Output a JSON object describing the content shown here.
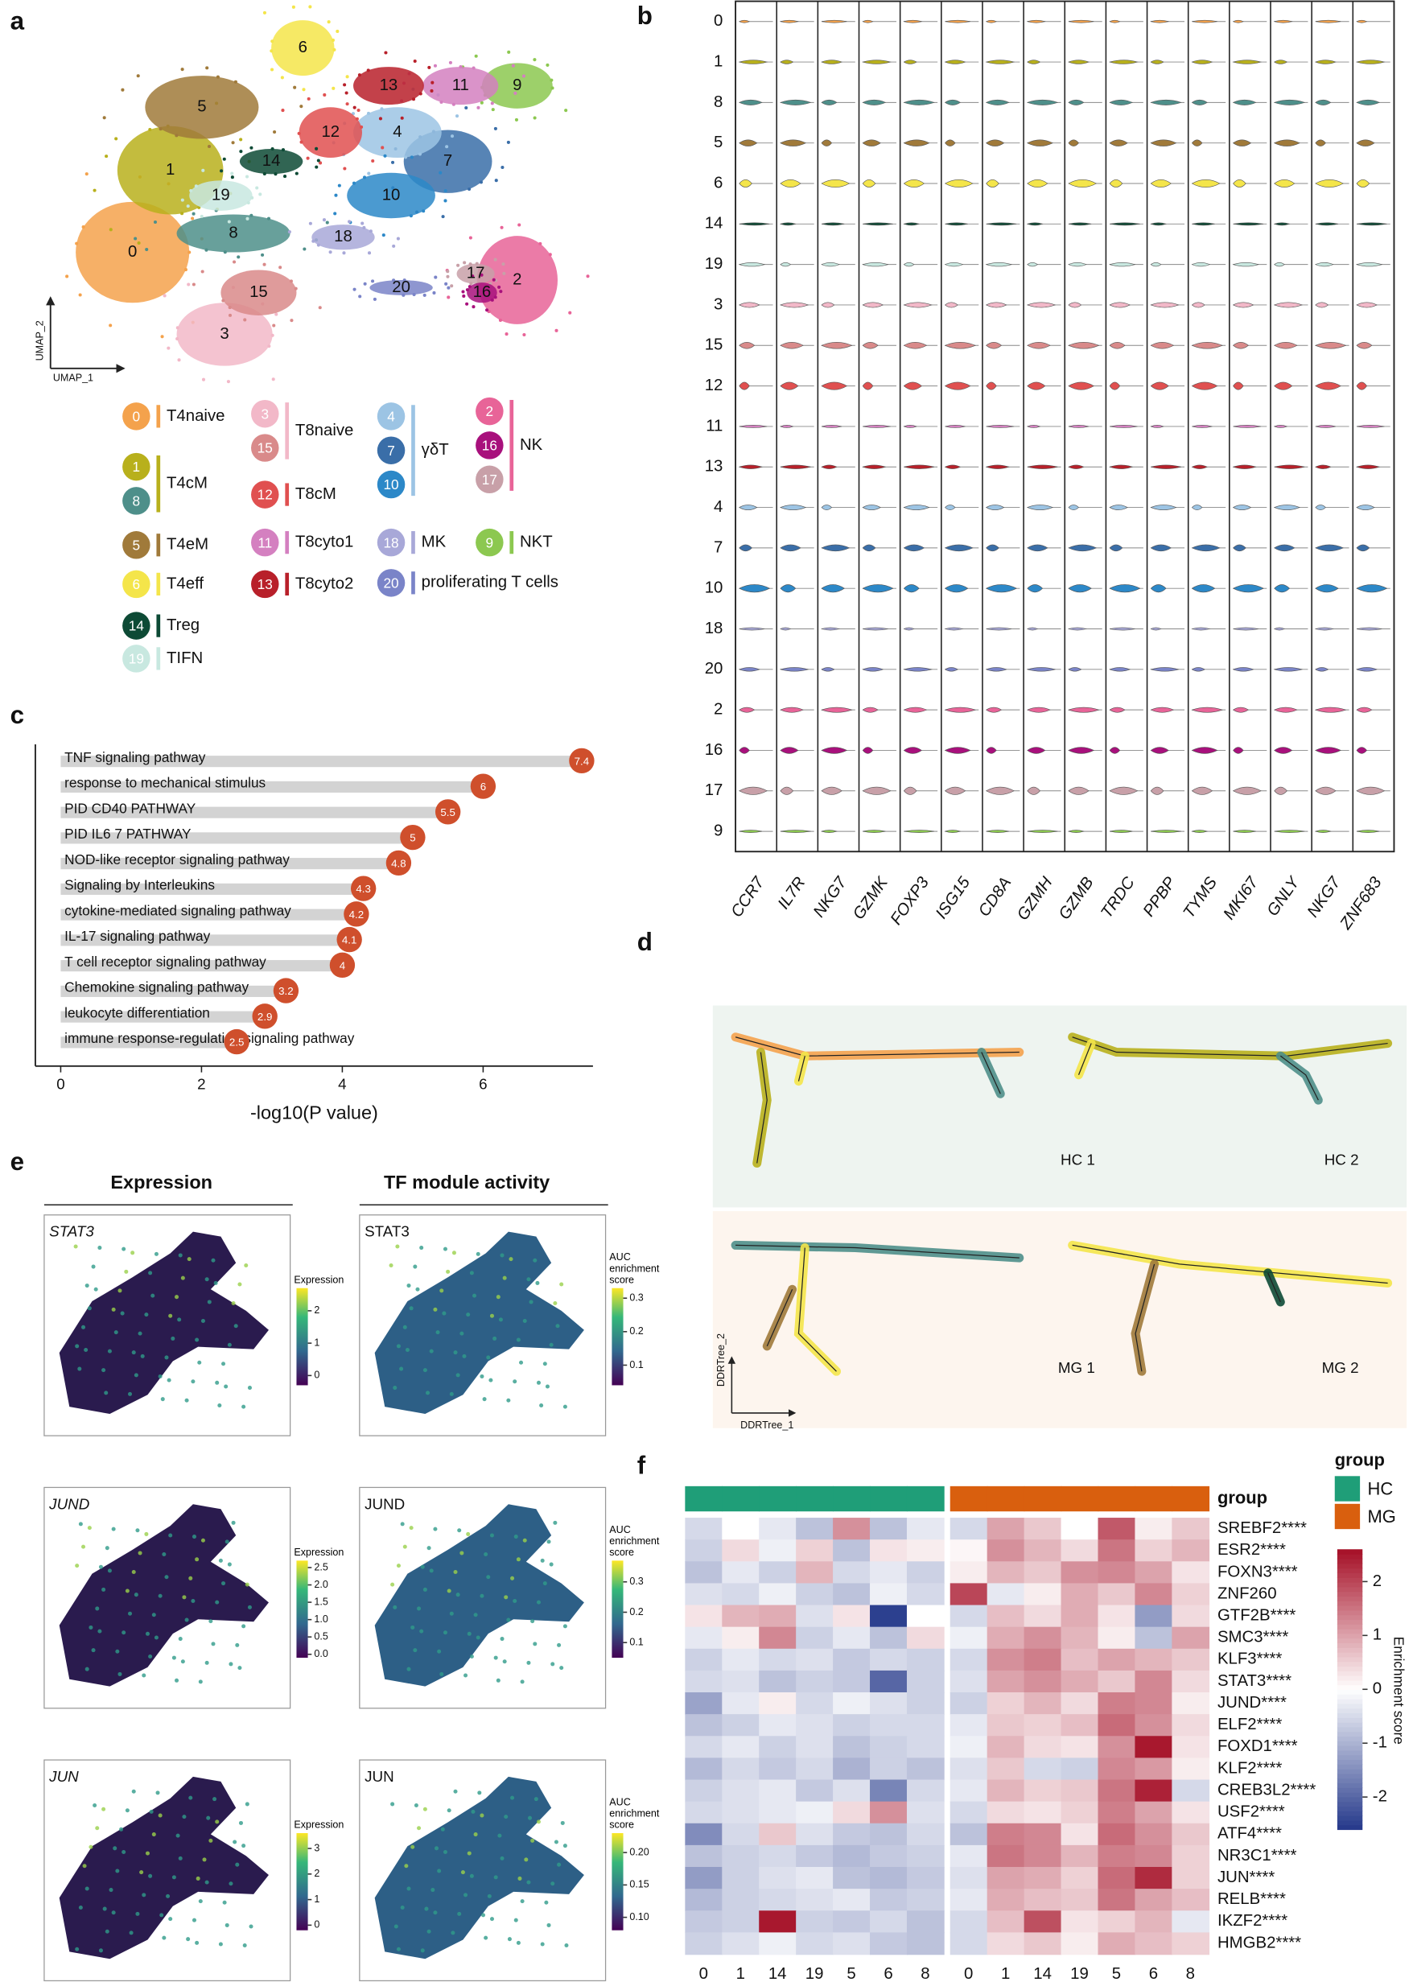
{
  "panel_letters": [
    "a",
    "b",
    "c",
    "d",
    "e",
    "f"
  ],
  "umap": {
    "x_label": "UMAP_1",
    "y_label": "UMAP_2"
  },
  "clusters": [
    {
      "id": "0",
      "color": "#f4a24c"
    },
    {
      "id": "1",
      "color": "#b8b01c"
    },
    {
      "id": "2",
      "color": "#e86498"
    },
    {
      "id": "3",
      "color": "#f2b8c8"
    },
    {
      "id": "4",
      "color": "#9cc4e4"
    },
    {
      "id": "5",
      "color": "#a07a3a"
    },
    {
      "id": "6",
      "color": "#f4e54a"
    },
    {
      "id": "7",
      "color": "#3a6ea8"
    },
    {
      "id": "8",
      "color": "#4e8f8a"
    },
    {
      "id": "9",
      "color": "#8cc850"
    },
    {
      "id": "10",
      "color": "#2c88c8"
    },
    {
      "id": "11",
      "color": "#d480c0"
    },
    {
      "id": "12",
      "color": "#e05050"
    },
    {
      "id": "13",
      "color": "#b8202a"
    },
    {
      "id": "14",
      "color": "#0d4a35"
    },
    {
      "id": "15",
      "color": "#d98a8a"
    },
    {
      "id": "16",
      "color": "#a8107c"
    },
    {
      "id": "17",
      "color": "#c8a0a8"
    },
    {
      "id": "18",
      "color": "#a8a8d8"
    },
    {
      "id": "19",
      "color": "#c8e8e0"
    },
    {
      "id": "20",
      "color": "#7a84c8"
    }
  ],
  "cell_types": [
    {
      "name": "T4naive",
      "clusters": [
        "0"
      ]
    },
    {
      "name": "T4cM",
      "clusters": [
        "1",
        "8"
      ]
    },
    {
      "name": "T4eM",
      "clusters": [
        "5"
      ]
    },
    {
      "name": "T4eff",
      "clusters": [
        "6"
      ]
    },
    {
      "name": "Treg",
      "clusters": [
        "14"
      ]
    },
    {
      "name": "TIFN",
      "clusters": [
        "19"
      ]
    },
    {
      "name": "T8naive",
      "clusters": [
        "3",
        "15"
      ]
    },
    {
      "name": "T8cM",
      "clusters": [
        "12"
      ]
    },
    {
      "name": "T8cyto1",
      "clusters": [
        "11"
      ]
    },
    {
      "name": "T8cyto2",
      "clusters": [
        "13"
      ]
    },
    {
      "name": "γδT",
      "clusters": [
        "4",
        "7",
        "10"
      ]
    },
    {
      "name": "MK",
      "clusters": [
        "18"
      ]
    },
    {
      "name": "proliferating T cells",
      "clusters": [
        "20"
      ]
    },
    {
      "name": "NK",
      "clusters": [
        "2",
        "16",
        "17"
      ]
    },
    {
      "name": "NKT",
      "clusters": [
        "9"
      ]
    }
  ],
  "violin": {
    "rows": [
      "0",
      "1",
      "8",
      "5",
      "6",
      "14",
      "19",
      "3",
      "15",
      "12",
      "11",
      "13",
      "4",
      "7",
      "10",
      "18",
      "20",
      "2",
      "16",
      "17",
      "9"
    ],
    "genes": [
      "CCR7",
      "IL7R",
      "NKG7",
      "GZMK",
      "FOXP3",
      "ISG15",
      "CD8A",
      "GZMH",
      "GZMB",
      "TRDC",
      "PPBP",
      "TYMS",
      "MKI67",
      "GNLY",
      "NKG7",
      "ZNF683"
    ]
  },
  "trajectory": {
    "panels": [
      "HC  1",
      "HC  2",
      "MG 1",
      "MG 2"
    ],
    "x_label": "DDRTree_1",
    "y_label": "DDRTree_2"
  },
  "regulons": {
    "headers": [
      "Expression",
      "TF module activity"
    ],
    "rows": [
      {
        "gene": "STAT3",
        "expression": {
          "title": "Expression",
          "lim": [
            -0.3,
            2.7
          ],
          "ticks": [
            0,
            1,
            2
          ]
        },
        "activity": {
          "title": "AUC enrichment score",
          "lim": [
            0.04,
            0.33
          ],
          "ticks": [
            0.1,
            0.2,
            0.3
          ]
        }
      },
      {
        "gene": "JUND",
        "expression": {
          "title": "Expression",
          "lim": [
            -0.1,
            2.7
          ],
          "ticks": [
            {
              "value": 0,
              "label": "0.0"
            },
            0.5,
            {
              "value": 1,
              "label": "1.0"
            },
            1.5,
            {
              "value": 2,
              "label": "2.0"
            },
            2.5
          ]
        },
        "activity": {
          "title": "AUC enrichment score",
          "lim": [
            0.05,
            0.37
          ],
          "ticks": [
            0.1,
            0.2,
            0.3
          ]
        }
      },
      {
        "gene": "JUN",
        "expression": {
          "title": "Expression",
          "lim": [
            -0.2,
            3.6
          ],
          "ticks": [
            0,
            1,
            2,
            3
          ]
        },
        "activity": {
          "title": "AUC enrichment score",
          "lim": [
            0.08,
            0.23
          ],
          "ticks": [
            {
              "value": 0.1,
              "label": "0.10"
            },
            0.15,
            {
              "value": 0.2,
              "label": "0.20"
            }
          ]
        }
      }
    ]
  },
  "chart_data": [
    {
      "type": "bar",
      "orientation": "horizontal",
      "categories": [
        "TNF signaling pathway",
        "response to mechanical stimulus",
        "PID CD40 PATHWAY",
        "PID IL6 7 PATHWAY",
        "NOD-like receptor signaling pathway",
        "Signaling by Interleukins",
        "cytokine-mediated signaling pathway",
        "IL-17 signaling pathway",
        "T cell receptor signaling pathway",
        "Chemokine signaling pathway",
        "leukocyte differentiation",
        "immune response-regulating signaling pathway"
      ],
      "values": [
        7.4,
        6,
        5.5,
        5,
        4.8,
        4.3,
        4.2,
        4.1,
        4,
        3.2,
        2.9,
        2.5
      ],
      "color": "#d3d3d3",
      "marker_color": "#cf4f2c",
      "x_label": "-log10(P value)",
      "xlim": [
        -0.36,
        7.56
      ],
      "xticks": [
        0,
        2,
        4,
        6
      ]
    },
    {
      "type": "heatmap",
      "x": [
        "0",
        "1",
        "14",
        "19",
        "5",
        "6",
        "8",
        "0",
        "1",
        "14",
        "19",
        "5",
        "6",
        "8"
      ],
      "column_groups": [
        "HC",
        "HC",
        "HC",
        "HC",
        "HC",
        "HC",
        "HC",
        "MG",
        "MG",
        "MG",
        "MG",
        "MG",
        "MG",
        "MG"
      ],
      "annotation_label": "group",
      "group_legend": {
        "title": "group",
        "names": [
          "HC",
          "MG"
        ],
        "colors": [
          "#1f9e78",
          "#d95f0e"
        ]
      },
      "y": [
        "SREBF2****",
        "ESR2****",
        "FOXN3****",
        "ZNF260",
        "GTF2B****",
        "SMC3****",
        "KLF3****",
        "STAT3****",
        "JUND****",
        "ELF2****",
        "FOXD1****",
        "KLF2****",
        "CREB3L2****",
        "USF2****",
        "ATF4****",
        "NR3C1****",
        "JUN****",
        "RELB****",
        "IKZF2****",
        "HMGB2****"
      ],
      "values": [
        [
          -0.5,
          0,
          -0.3,
          -0.8,
          1.2,
          -0.8,
          -0.3,
          -0.5,
          1,
          0.6,
          0,
          1.8,
          0.2,
          0.6
        ],
        [
          -0.6,
          0.4,
          -0.2,
          0.5,
          -0.8,
          0.3,
          0.2,
          0.1,
          1.2,
          0.8,
          0.4,
          1.5,
          0.5,
          0.8
        ],
        [
          -0.8,
          -0.3,
          -0.6,
          0.8,
          -0.5,
          -0.3,
          -0.6,
          0.2,
          0.8,
          0.6,
          1.2,
          1.3,
          1,
          0.3
        ],
        [
          -0.4,
          -0.5,
          -0.2,
          -0.6,
          -0.8,
          -0.2,
          -0.5,
          2,
          -0.3,
          0.2,
          0.9,
          0.6,
          1.3,
          0.5
        ],
        [
          0.3,
          0.8,
          0.9,
          -0.4,
          0.3,
          -2.5,
          0,
          -0.5,
          0.7,
          0.4,
          0.9,
          0.3,
          -1.3,
          0.4
        ],
        [
          -0.3,
          0.2,
          1.3,
          -0.6,
          -0.3,
          -0.8,
          0.4,
          -0.2,
          0.9,
          1.2,
          0.8,
          0.2,
          -0.8,
          1
        ],
        [
          -0.6,
          -0.3,
          -0.5,
          -0.4,
          -0.7,
          -0.5,
          -0.6,
          -0.5,
          1.2,
          1.4,
          0.7,
          1,
          0.8,
          0.6
        ],
        [
          -0.5,
          -0.4,
          -0.8,
          -0.6,
          -0.7,
          -2,
          -0.6,
          -0.4,
          1,
          1.2,
          0.9,
          0.6,
          1.3,
          0.4
        ],
        [
          -1.2,
          -0.3,
          0.2,
          -0.5,
          -0.2,
          -0.4,
          -0.6,
          -0.6,
          0.5,
          0.8,
          0.4,
          1.4,
          1.3,
          0.2
        ],
        [
          -0.8,
          -0.6,
          -0.3,
          -0.4,
          -0.6,
          -0.5,
          -0.5,
          -0.3,
          0.6,
          0.5,
          0.7,
          1.6,
          1.2,
          0.4
        ],
        [
          -0.5,
          -0.3,
          -0.6,
          -0.4,
          -0.8,
          -0.6,
          -0.5,
          -0.2,
          0.8,
          0.4,
          0.3,
          1.2,
          2.5,
          0.3
        ],
        [
          -0.9,
          -0.5,
          -0.7,
          -0.5,
          -1,
          -0.6,
          -0.8,
          -0.4,
          0.6,
          -0.5,
          -0.6,
          1.3,
          1.1,
          0.2
        ],
        [
          -0.6,
          -0.4,
          -0.3,
          -0.7,
          -0.4,
          -1.6,
          -0.5,
          -0.3,
          0.8,
          0.5,
          0.6,
          1.5,
          2.4,
          -0.5
        ],
        [
          -0.5,
          -0.4,
          -0.3,
          -0.2,
          0.4,
          1.2,
          -0.4,
          -0.5,
          0.4,
          0.3,
          0.5,
          1.4,
          1,
          0.3
        ],
        [
          -1.5,
          -0.5,
          0.6,
          -0.4,
          -0.7,
          -0.8,
          -0.5,
          -0.8,
          1.4,
          1.3,
          0.3,
          1.6,
          1.2,
          0.6
        ],
        [
          -0.8,
          -0.6,
          -0.5,
          -0.7,
          -0.9,
          -0.7,
          -0.6,
          -0.3,
          1.5,
          1.3,
          0.8,
          1.4,
          1.3,
          0.5
        ],
        [
          -1.3,
          -0.6,
          -0.4,
          -0.3,
          -0.8,
          -0.9,
          -0.7,
          -0.4,
          1,
          0.9,
          0.5,
          1.6,
          2.3,
          0.5
        ],
        [
          -0.9,
          -0.6,
          -0.5,
          -0.4,
          -0.3,
          -0.7,
          -0.6,
          -0.3,
          0.9,
          0.7,
          0.6,
          1.5,
          1,
          0.7
        ],
        [
          -0.7,
          -0.6,
          2.5,
          -0.6,
          -0.7,
          -0.5,
          -0.8,
          -0.5,
          0.7,
          1.9,
          0.3,
          0.5,
          0.8,
          -0.3
        ],
        [
          -0.6,
          -0.4,
          -0.2,
          -0.5,
          -0.4,
          -0.7,
          -0.8,
          -0.5,
          0.4,
          0.6,
          0.2,
          0.9,
          0.7,
          0.5
        ]
      ],
      "colorbar": {
        "title": "Enrichment score",
        "lim": [
          -2.6,
          2.6
        ],
        "ticks": [
          -2,
          -1,
          0,
          1,
          2
        ],
        "colors": [
          "#24388a",
          "#ffffff",
          "#a50f26"
        ]
      }
    }
  ]
}
